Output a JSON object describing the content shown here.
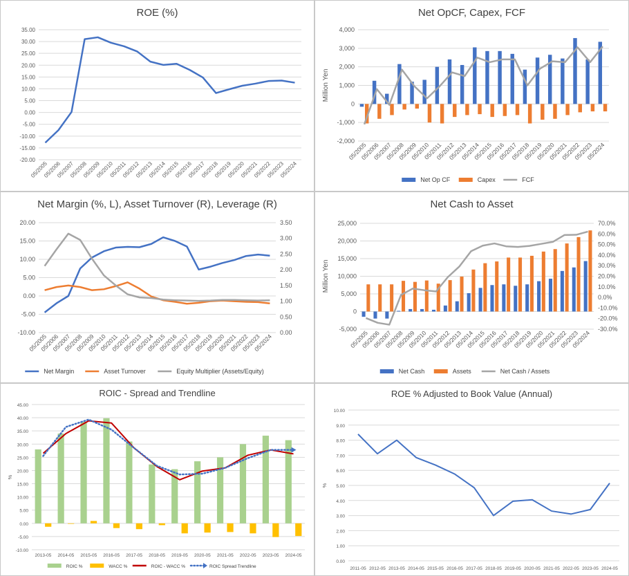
{
  "chart_data": [
    {
      "type": "line",
      "title": "ROE (%)",
      "ylim": [
        -20,
        35
      ],
      "yticks": [
        "35.00",
        "30.00",
        "25.00",
        "20.00",
        "15.00",
        "10.00",
        "5.00",
        "0.00",
        "-5.00",
        "-10.00",
        "-15.00",
        "-20.00"
      ],
      "categories": [
        "05/2005",
        "05/2006",
        "05/2007",
        "05/2008",
        "05/2009",
        "05/2010",
        "05/2011",
        "05/2012",
        "05/2013",
        "05/2014",
        "05/2015",
        "05/2016",
        "05/2017",
        "05/2018",
        "05/2019",
        "05/2020",
        "05/2021",
        "05/2022",
        "05/2023",
        "05/2024"
      ],
      "series": [
        {
          "values": [
            -12.8,
            -7.5,
            0.2,
            31.0,
            31.8,
            29.5,
            28.0,
            25.8,
            21.5,
            20.1,
            20.6,
            18.0,
            14.8,
            8.2,
            9.8,
            11.3,
            12.2,
            13.3,
            13.5,
            12.6
          ],
          "color": "#4472C4"
        }
      ],
      "grid": true
    },
    {
      "type": "bar",
      "title": "Net OpCF, Capex, FCF",
      "ylabel": "Million Yen",
      "ylim": [
        -2000,
        4000
      ],
      "yticks": [
        "4,000",
        "3,000",
        "2,000",
        "1,000",
        "0",
        "-1,000",
        "-2,000"
      ],
      "categories": [
        "05/2005",
        "05/2006",
        "05/2007",
        "05/2008",
        "05/2009",
        "05/2010",
        "05/2011",
        "05/2012",
        "05/2013",
        "05/2014",
        "05/2015",
        "05/2016",
        "05/2017",
        "05/2018",
        "05/2019",
        "05/2020",
        "05/2021",
        "05/2022",
        "05/2023",
        "05/2024"
      ],
      "series": [
        {
          "name": "Net Op CF",
          "type": "bar",
          "color": "#4472C4",
          "values": [
            -150,
            1250,
            550,
            2150,
            1200,
            1300,
            2000,
            2400,
            2100,
            3050,
            2850,
            2850,
            2700,
            1850,
            2500,
            2650,
            2450,
            3550,
            2400,
            3350
          ]
        },
        {
          "name": "Capex",
          "type": "bar",
          "color": "#ED7D31",
          "values": [
            -1050,
            -800,
            -600,
            -300,
            -250,
            -1000,
            -1050,
            -700,
            -600,
            -550,
            -700,
            -650,
            -600,
            -1050,
            -850,
            -800,
            -600,
            -450,
            -400,
            -400
          ]
        },
        {
          "name": "FCF",
          "type": "line",
          "color": "#A5A5A5",
          "values": [
            -1100,
            800,
            -50,
            1850,
            950,
            300,
            950,
            1700,
            1500,
            2500,
            2250,
            2400,
            2400,
            1000,
            1900,
            2300,
            2250,
            3050,
            2250,
            3100
          ]
        }
      ],
      "legend": "bottom",
      "grid": true
    },
    {
      "type": "line",
      "title": "Net Margin (%, L), Asset Turnover (R), Leverage (R)",
      "ylim": [
        -10,
        20
      ],
      "y2lim": [
        0,
        3.5
      ],
      "yticks": [
        "20.00",
        "15.00",
        "10.00",
        "5.00",
        "0.00",
        "-5.00",
        "-10.00"
      ],
      "y2ticks": [
        "3.50",
        "3.00",
        "2.50",
        "2.00",
        "1.50",
        "1.00",
        "0.50",
        "0.00"
      ],
      "categories": [
        "05/2005",
        "05/2006",
        "05/2007",
        "05/2008",
        "05/2009",
        "05/2010",
        "05/2011",
        "05/2012",
        "05/2013",
        "05/2014",
        "05/2015",
        "05/2016",
        "05/2017",
        "05/2018",
        "05/2019",
        "05/2020",
        "05/2021",
        "05/2022",
        "05/2023",
        "05/2024"
      ],
      "series": [
        {
          "name": "Net Margin",
          "axis": "left",
          "color": "#4472C4",
          "values": [
            -4.5,
            -2.0,
            0.0,
            7.5,
            10.5,
            12.2,
            13.2,
            13.4,
            13.3,
            14.2,
            16.0,
            15.0,
            13.5,
            7.2,
            8.0,
            9.0,
            9.8,
            10.9,
            11.3,
            11.0
          ]
        },
        {
          "name": "Asset Turnover",
          "axis": "right",
          "color": "#ED7D31",
          "values": [
            1.35,
            1.45,
            1.5,
            1.45,
            1.35,
            1.38,
            1.48,
            1.6,
            1.4,
            1.15,
            1.03,
            0.98,
            0.92,
            0.95,
            1.0,
            1.02,
            1.0,
            0.98,
            0.97,
            0.93
          ]
        },
        {
          "name": "Equity Multiplier (Assets/Equity)",
          "axis": "right",
          "color": "#A5A5A5",
          "values": [
            2.12,
            2.65,
            3.15,
            2.95,
            2.35,
            1.82,
            1.5,
            1.22,
            1.12,
            1.1,
            1.05,
            1.03,
            1.02,
            1.01,
            1.02,
            1.04,
            1.04,
            1.03,
            1.02,
            1.03
          ]
        }
      ],
      "legend": "bottom",
      "grid": true
    },
    {
      "type": "bar",
      "title": "Net Cash to Asset",
      "ylabel": "Million Yen",
      "ylim": [
        -5000,
        25000
      ],
      "y2lim": [
        -30,
        70
      ],
      "yticks": [
        "25,000",
        "20,000",
        "15,000",
        "10,000",
        "5,000",
        "0",
        "-5,000"
      ],
      "y2ticks": [
        "70.0%",
        "60.0%",
        "50.0%",
        "40.0%",
        "30.0%",
        "20.0%",
        "10.0%",
        "0.0%",
        "-10.0%",
        "-20.0%",
        "-30.0%"
      ],
      "categories": [
        "05/2005",
        "05/2006",
        "05/2007",
        "05/2008",
        "05/2009",
        "05/2010",
        "05/2011",
        "05/2012",
        "05/2013",
        "05/2014",
        "05/2015",
        "05/2016",
        "05/2017",
        "05/2018",
        "05/2019",
        "05/2020",
        "05/2021",
        "05/2022",
        "05/2023",
        "05/2024"
      ],
      "series": [
        {
          "name": "Net Cash",
          "type": "bar",
          "axis": "left",
          "color": "#4472C4",
          "values": [
            -1500,
            -2000,
            -2000,
            200,
            700,
            700,
            500,
            1700,
            2900,
            5200,
            6700,
            7500,
            7700,
            7300,
            7700,
            8600,
            9300,
            11500,
            12500,
            14300
          ]
        },
        {
          "name": "Assets",
          "type": "bar",
          "axis": "left",
          "color": "#ED7D31",
          "values": [
            7700,
            7700,
            7700,
            8700,
            8400,
            8800,
            7900,
            8900,
            9900,
            11900,
            13700,
            14200,
            15300,
            15300,
            15800,
            17000,
            17700,
            19300,
            21100,
            23000
          ]
        },
        {
          "name": "Net Cash / Assets",
          "type": "line",
          "axis": "right",
          "color": "#A5A5A5",
          "values": [
            -19.5,
            -24.0,
            -25.8,
            2.3,
            8.3,
            6.8,
            5.6,
            19.1,
            29.3,
            43.7,
            48.9,
            51.0,
            48.3,
            47.7,
            48.7,
            50.6,
            52.5,
            59.0,
            59.2,
            62.2
          ]
        }
      ],
      "legend": "bottom",
      "grid": true
    },
    {
      "type": "bar",
      "title": "ROIC - Spread and Trendline",
      "ylabel": "%",
      "ylim": [
        -10,
        45
      ],
      "yticks": [
        "45.00",
        "40.00",
        "35.00",
        "30.00",
        "25.00",
        "20.00",
        "15.00",
        "10.00",
        "5.00",
        "0.00",
        "-5.00",
        "-10.00"
      ],
      "categories": [
        "2013-05",
        "2014-05",
        "2015-05",
        "2016-05",
        "2017-05",
        "2018-05",
        "2019-05",
        "2020-05",
        "2021-05",
        "2022-05",
        "2023-05",
        "2024-05"
      ],
      "series": [
        {
          "name": "ROIC %",
          "type": "bar",
          "color": "#A9D18E",
          "values": [
            28.0,
            34.0,
            38.5,
            39.8,
            31.0,
            22.3,
            20.5,
            23.5,
            25.0,
            30.0,
            33.2,
            31.5
          ]
        },
        {
          "name": "WACC %",
          "type": "bar",
          "color": "#FFC000",
          "values": [
            -1.3,
            -0.2,
            0.9,
            -1.8,
            -2.2,
            -0.7,
            -3.8,
            -3.5,
            -3.3,
            -3.8,
            -5.2,
            -4.8
          ]
        },
        {
          "name": "ROIC - WACC %",
          "type": "line",
          "color": "#C00000",
          "values": [
            26.5,
            34.0,
            38.8,
            38.0,
            28.5,
            21.5,
            16.5,
            19.8,
            21.0,
            25.8,
            27.8,
            26.3
          ]
        },
        {
          "name": "ROIC Spread Trendline",
          "type": "trendline",
          "color": "#4472C4",
          "values": [
            25.5,
            36.5,
            39.3,
            35.5,
            28.5,
            21.8,
            18.5,
            18.8,
            21.0,
            24.7,
            27.8,
            27.8
          ]
        }
      ],
      "legend": "bottom",
      "grid": true
    },
    {
      "type": "line",
      "title": "ROE % Adjusted to Book Value (Annual)",
      "ylabel": "%",
      "ylim": [
        0,
        10
      ],
      "yticks": [
        "10.00",
        "9.00",
        "8.00",
        "7.00",
        "6.00",
        "5.00",
        "4.00",
        "3.00",
        "2.00",
        "1.00",
        "0.00"
      ],
      "categories": [
        "2011-05",
        "2012-05",
        "2013-05",
        "2014-05",
        "2015-05",
        "2016-05",
        "2017-05",
        "2018-05",
        "2019-05",
        "2020-05",
        "2021-05",
        "2022-05",
        "2023-05",
        "2024-05"
      ],
      "series": [
        {
          "values": [
            8.4,
            7.1,
            8.0,
            6.85,
            6.35,
            5.75,
            4.85,
            3.0,
            3.95,
            4.05,
            3.3,
            3.1,
            3.4,
            5.15
          ],
          "color": "#4472C4"
        }
      ],
      "grid": true
    }
  ]
}
